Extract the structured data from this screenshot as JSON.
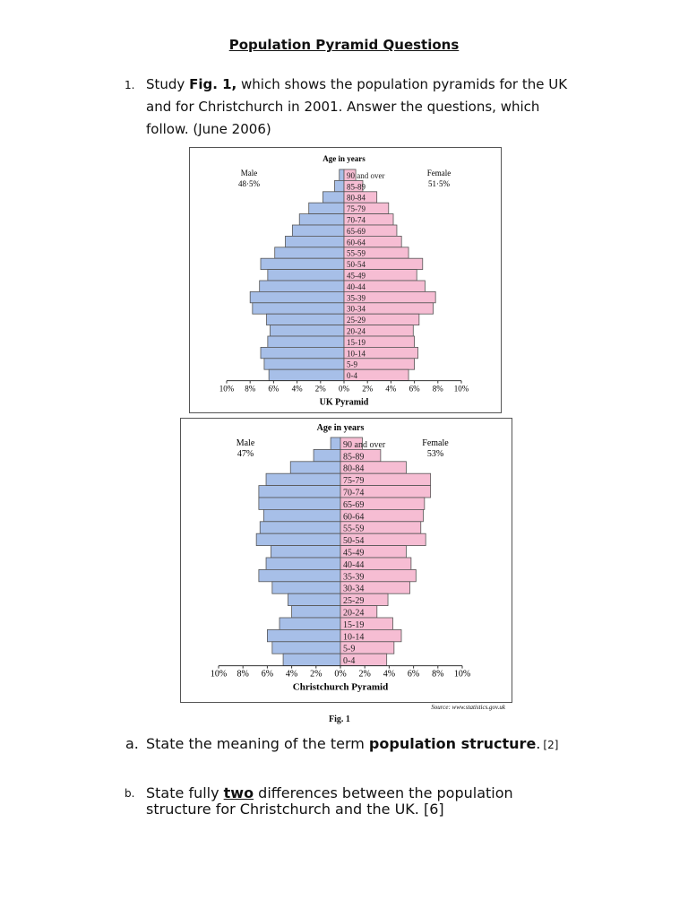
{
  "document": {
    "title": "Population Pyramid Questions",
    "q1": {
      "number": "1.",
      "line1_pre": "Study ",
      "line1_bold": "Fig. 1,",
      "line1_post": " which shows the population pyramids for the UK",
      "line2": "and for Christchurch in 2001. Answer the questions, which",
      "line3": "follow. (June 2006)"
    },
    "qa": {
      "label": "a.",
      "pre": "State the meaning of the term ",
      "bold": "population structure",
      "post": ".",
      "marks": "[2]"
    },
    "qb": {
      "label": "b.",
      "pre": "State fully ",
      "bold": "two",
      "post": " differences between the population",
      "line2": "structure for Christchurch and the UK. [6]"
    },
    "source": "Source: www.statistics.gov.uk",
    "figure_label": "Fig. 1"
  },
  "chart_data": [
    {
      "type": "bar",
      "orientation": "horizontal-pyramid",
      "title": "UK Pyramid",
      "axis_title": "Age in years",
      "male_label": "Male",
      "male_total": "48·5%",
      "female_label": "Female",
      "female_total": "51·5%",
      "tick_labels": [
        "10%",
        "8%",
        "6%",
        "4%",
        "2%",
        "0%",
        "2%",
        "4%",
        "6%",
        "8%",
        "10%"
      ],
      "xlim": [
        -10,
        10
      ],
      "categories": [
        "90 and over",
        "85-89",
        "80-84",
        "75-79",
        "70-74",
        "65-69",
        "60-64",
        "55-59",
        "50-54",
        "45-49",
        "40-44",
        "35-39",
        "30-34",
        "25-29",
        "20-24",
        "15-19",
        "10-14",
        "5-9",
        "0-4"
      ],
      "series": [
        {
          "name": "Male",
          "color": "#a7bfe8",
          "values": [
            0.4,
            0.8,
            1.8,
            3.0,
            3.8,
            4.4,
            5.0,
            5.9,
            7.1,
            6.5,
            7.2,
            8.0,
            7.8,
            6.6,
            6.3,
            6.5,
            7.1,
            6.8,
            6.4
          ]
        },
        {
          "name": "Female",
          "color": "#f6bdd3",
          "values": [
            1.0,
            1.6,
            2.8,
            3.8,
            4.2,
            4.5,
            4.9,
            5.5,
            6.7,
            6.2,
            6.9,
            7.8,
            7.6,
            6.4,
            5.9,
            6.0,
            6.3,
            6.0,
            5.5
          ]
        }
      ]
    },
    {
      "type": "bar",
      "orientation": "horizontal-pyramid",
      "title": "Christchurch Pyramid",
      "axis_title": "Age in years",
      "male_label": "Male",
      "male_total": "47%",
      "female_label": "Female",
      "female_total": "53%",
      "tick_labels": [
        "10%",
        "8%",
        "6%",
        "4%",
        "2%",
        "0%",
        "2%",
        "4%",
        "6%",
        "8%",
        "10%"
      ],
      "xlim": [
        -10,
        10
      ],
      "categories": [
        "90 and over",
        "85-89",
        "80-84",
        "75-79",
        "70-74",
        "65-69",
        "60-64",
        "55-59",
        "50-54",
        "45-49",
        "40-44",
        "35-39",
        "30-34",
        "25-29",
        "20-24",
        "15-19",
        "10-14",
        "5-9",
        "0-4"
      ],
      "series": [
        {
          "name": "Male",
          "color": "#a7bfe8",
          "values": [
            0.8,
            2.2,
            4.1,
            6.1,
            6.7,
            6.7,
            6.3,
            6.6,
            6.9,
            5.7,
            6.1,
            6.7,
            5.6,
            4.3,
            4.0,
            5.0,
            6.0,
            5.6,
            4.7
          ]
        },
        {
          "name": "Female",
          "color": "#f6bdd3",
          "values": [
            1.8,
            3.3,
            5.4,
            7.4,
            7.4,
            6.9,
            6.8,
            6.6,
            7.0,
            5.4,
            5.8,
            6.2,
            5.7,
            3.9,
            3.0,
            4.3,
            5.0,
            4.4,
            3.8
          ]
        }
      ]
    }
  ]
}
